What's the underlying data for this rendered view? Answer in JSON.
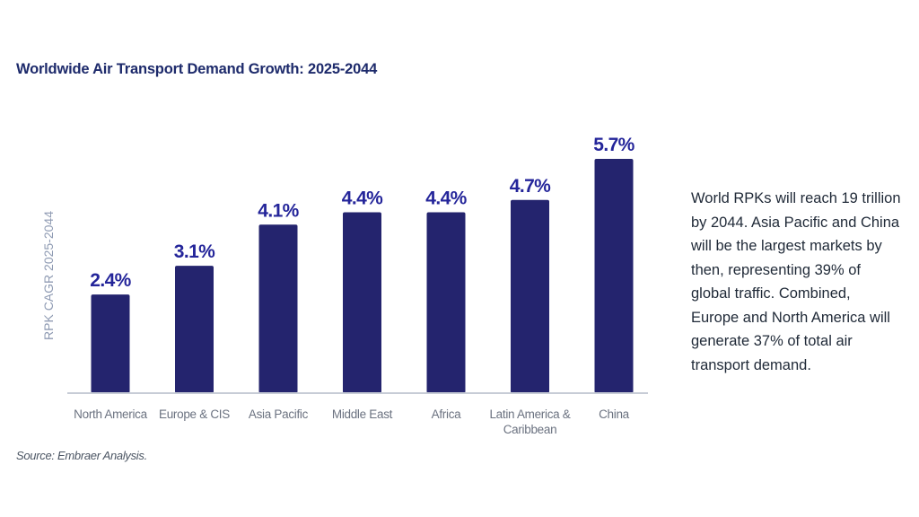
{
  "chart_data": {
    "type": "bar",
    "title": "Worldwide Air Transport Demand Growth: 2025-2044",
    "ylabel": "RPK CAGR 2025-2044",
    "xlabel": "",
    "categories": [
      [
        "North America"
      ],
      [
        "Europe & CIS"
      ],
      [
        "Asia Pacific"
      ],
      [
        "Middle East"
      ],
      [
        "Africa"
      ],
      [
        "Latin America &",
        "Caribbean"
      ],
      [
        "China"
      ]
    ],
    "values": [
      2.4,
      3.1,
      4.1,
      4.4,
      4.4,
      4.7,
      5.7
    ],
    "value_labels": [
      "2.4%",
      "3.1%",
      "4.1%",
      "4.4%",
      "4.4%",
      "4.7%",
      "5.7%"
    ],
    "ylim": [
      0,
      5.7
    ],
    "grid": false,
    "bar_color": "#24246e",
    "value_label_color": "#24259a",
    "axis_line_color": "#c7ccd6"
  },
  "note": {
    "text": "World RPKs will reach 19 trillion by 2044. Asia Pacific and China will be the largest markets by then, representing 39% of global traffic. Combined, Europe and North America will generate 37% of total air transport demand."
  },
  "source": "Source: Embraer Analysis."
}
